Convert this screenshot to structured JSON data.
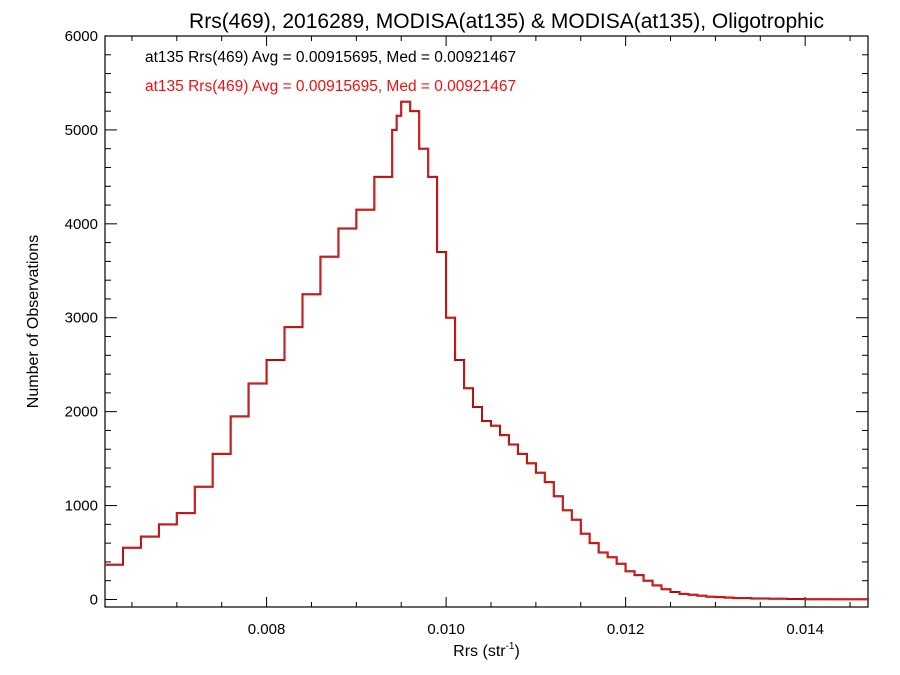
{
  "chart_data": {
    "type": "line",
    "step": true,
    "title": "Rrs(469), 2016289, MODISA(at135) & MODISA(at135), Oligotrophic",
    "xlabel_base": "Rrs (str",
    "xlabel_sup": "-1",
    "xlabel_end": ")",
    "ylabel": "Number of Observations",
    "xlim": [
      0.0062,
      0.0147
    ],
    "ylim": [
      -80,
      6000
    ],
    "xticks": [
      0.008,
      0.01,
      0.012,
      0.014
    ],
    "xtick_labels": [
      "0.008",
      "0.010",
      "0.012",
      "0.014"
    ],
    "yticks": [
      0,
      1000,
      2000,
      3000,
      4000,
      5000,
      6000
    ],
    "ytick_labels": [
      "0",
      "1000",
      "2000",
      "3000",
      "4000",
      "5000",
      "6000"
    ],
    "grid": false,
    "legend_position": "top-left",
    "series": [
      {
        "name": "at135 Rrs(469) Avg = 0.00915695, Med = 0.00921467",
        "color": "#000000",
        "x": [
          0.0062,
          0.0064,
          0.0066,
          0.0068,
          0.007,
          0.0072,
          0.0074,
          0.0076,
          0.0078,
          0.008,
          0.0082,
          0.0084,
          0.0086,
          0.0088,
          0.009,
          0.0092,
          0.0094,
          0.00945,
          0.0095,
          0.0096,
          0.0097,
          0.0098,
          0.0099,
          0.01,
          0.0101,
          0.0102,
          0.0103,
          0.0104,
          0.0105,
          0.0106,
          0.0107,
          0.0108,
          0.0109,
          0.011,
          0.0111,
          0.0112,
          0.0113,
          0.0114,
          0.0115,
          0.0116,
          0.0117,
          0.0118,
          0.0119,
          0.012,
          0.0121,
          0.0122,
          0.0123,
          0.0124,
          0.0125,
          0.0126,
          0.0127,
          0.0128,
          0.0129,
          0.013,
          0.0131,
          0.0132,
          0.0134,
          0.0136,
          0.0138,
          0.014,
          0.0143,
          0.0147
        ],
        "y": [
          370,
          550,
          670,
          800,
          920,
          1200,
          1550,
          1950,
          2300,
          2550,
          2900,
          3250,
          3650,
          3950,
          4150,
          4500,
          5000,
          5150,
          5300,
          5200,
          4800,
          4500,
          3700,
          3000,
          2550,
          2250,
          2050,
          1900,
          1850,
          1750,
          1650,
          1550,
          1450,
          1350,
          1250,
          1100,
          950,
          850,
          700,
          600,
          500,
          450,
          380,
          300,
          260,
          200,
          150,
          110,
          80,
          60,
          50,
          40,
          30,
          25,
          20,
          15,
          10,
          8,
          5,
          3,
          2,
          1
        ]
      },
      {
        "name": "at135 Rrs(469) Avg = 0.00915695, Med = 0.00921467",
        "color": "#ee1111",
        "x": [
          0.0062,
          0.0064,
          0.0066,
          0.0068,
          0.007,
          0.0072,
          0.0074,
          0.0076,
          0.0078,
          0.008,
          0.0082,
          0.0084,
          0.0086,
          0.0088,
          0.009,
          0.0092,
          0.0094,
          0.00945,
          0.0095,
          0.0096,
          0.0097,
          0.0098,
          0.0099,
          0.01,
          0.0101,
          0.0102,
          0.0103,
          0.0104,
          0.0105,
          0.0106,
          0.0107,
          0.0108,
          0.0109,
          0.011,
          0.0111,
          0.0112,
          0.0113,
          0.0114,
          0.0115,
          0.0116,
          0.0117,
          0.0118,
          0.0119,
          0.012,
          0.0121,
          0.0122,
          0.0123,
          0.0124,
          0.0125,
          0.0126,
          0.0127,
          0.0128,
          0.0129,
          0.013,
          0.0131,
          0.0132,
          0.0134,
          0.0136,
          0.0138,
          0.014,
          0.0143,
          0.0147
        ],
        "y": [
          370,
          550,
          670,
          800,
          920,
          1200,
          1550,
          1950,
          2300,
          2550,
          2900,
          3250,
          3650,
          3950,
          4150,
          4500,
          5000,
          5150,
          5300,
          5200,
          4800,
          4500,
          3700,
          3000,
          2550,
          2250,
          2050,
          1900,
          1850,
          1750,
          1650,
          1550,
          1450,
          1350,
          1250,
          1100,
          950,
          850,
          700,
          600,
          500,
          450,
          380,
          300,
          260,
          200,
          150,
          110,
          80,
          60,
          50,
          40,
          30,
          25,
          20,
          15,
          10,
          8,
          5,
          3,
          2,
          1
        ]
      }
    ]
  }
}
